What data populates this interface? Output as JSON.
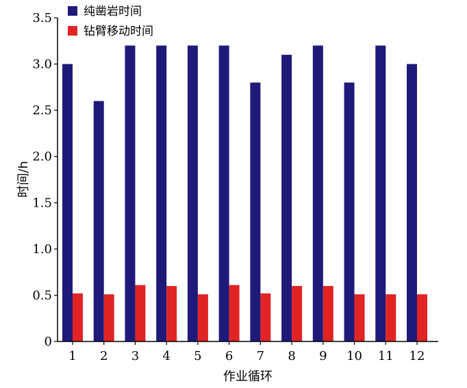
{
  "chart_data": {
    "type": "bar",
    "xlabel": "作业循环",
    "ylabel": "时间/h",
    "ylim": [
      0,
      3.5
    ],
    "yticks": [
      "0",
      "0.5",
      "1.0",
      "1.5",
      "2.0",
      "2.5",
      "3.0",
      "3.5"
    ],
    "categories": [
      "1",
      "2",
      "3",
      "4",
      "5",
      "6",
      "7",
      "8",
      "9",
      "10",
      "11",
      "12"
    ],
    "series": [
      {
        "name": "纯凿岩时间",
        "color": "#1f1a7a",
        "values": [
          3.0,
          2.6,
          3.2,
          3.2,
          3.2,
          3.2,
          2.8,
          3.1,
          3.2,
          2.8,
          3.2,
          3.0
        ]
      },
      {
        "name": "钻臂移动时间",
        "color": "#e02424",
        "values": [
          0.52,
          0.51,
          0.61,
          0.6,
          0.51,
          0.61,
          0.52,
          0.6,
          0.6,
          0.51,
          0.51,
          0.51
        ]
      }
    ],
    "legend_position": "top-left",
    "grid": false
  }
}
